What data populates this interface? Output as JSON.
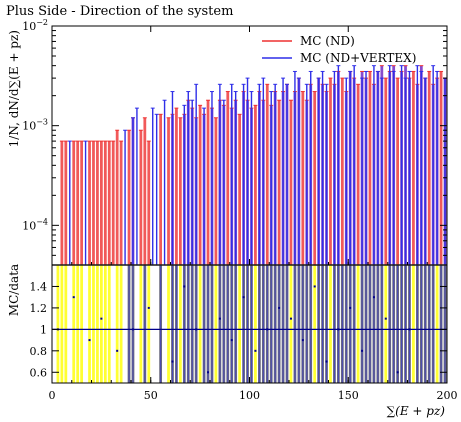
{
  "chart_data": {
    "type": "bar",
    "title": "Plus Side - Direction of the system",
    "xlabel": "∑(E + p_z)",
    "ylabel_main": "1/N, dN/d∑(E + p_z)",
    "ylabel_ratio": "MC/data",
    "xlim": [
      0,
      200
    ],
    "ylim_main": [
      4e-05,
      0.01
    ],
    "ylim_ratio": [
      0.5,
      1.6
    ],
    "yscale_main": "log",
    "x_ticks": [
      "0",
      "50",
      "100",
      "150",
      "200"
    ],
    "y_ticks_main": [
      "10^{-4}",
      "10^{-3}",
      "10^{-2}"
    ],
    "y_ticks_ratio": [
      "0.6",
      "0.8",
      "1",
      "1.2",
      "1.4"
    ],
    "legend_position": "top-right",
    "colors": {
      "nd": "#ee3030",
      "nd_vertex": "#2f2fe8",
      "overlap": "#7a37c8",
      "ratio_nd": "#ffff33",
      "ratio_vertex": "#4848b8",
      "ratio_overlap": "#6b6b7d",
      "reference_line": "#00008b"
    },
    "series": [
      {
        "name": "MC (ND)",
        "x": [
          5,
          7,
          11,
          13,
          15,
          19,
          21,
          23,
          25,
          27,
          29,
          31,
          33,
          35,
          39,
          41,
          45,
          47,
          49,
          55,
          59,
          61,
          63,
          65,
          67,
          69,
          71,
          73,
          75,
          77,
          79,
          81,
          83,
          85,
          87,
          89,
          91,
          93,
          95,
          97,
          99,
          101,
          103,
          105,
          107,
          109,
          111,
          113,
          115,
          117,
          119,
          121,
          123,
          125,
          127,
          129,
          131,
          133,
          135,
          137,
          139,
          141,
          143,
          145,
          147,
          149,
          151,
          153,
          155,
          157,
          159,
          161,
          163,
          165,
          167,
          169,
          171,
          173,
          175,
          177,
          179,
          181,
          183,
          185,
          187,
          189,
          191,
          193,
          195,
          197,
          199
        ],
        "values": [
          0.0007,
          0.0007,
          0.0007,
          0.0007,
          0.0007,
          0.0007,
          0.0007,
          0.0007,
          0.0007,
          0.0007,
          0.0007,
          0.0007,
          0.0009,
          0.0007,
          0.0009,
          0.0012,
          0.0009,
          0.0012,
          0.0007,
          0.0013,
          0.0012,
          0.0013,
          0.0015,
          0.0012,
          0.0013,
          0.0018,
          0.0015,
          0.0012,
          0.0016,
          0.0013,
          0.0018,
          0.0015,
          0.0012,
          0.0018,
          0.0016,
          0.0022,
          0.0015,
          0.0018,
          0.0013,
          0.0022,
          0.0018,
          0.0015,
          0.0016,
          0.0022,
          0.0018,
          0.0026,
          0.0016,
          0.0022,
          0.0018,
          0.0022,
          0.0026,
          0.0018,
          0.0022,
          0.003,
          0.0022,
          0.0018,
          0.0026,
          0.0022,
          0.003,
          0.0026,
          0.0022,
          0.003,
          0.0026,
          0.0035,
          0.003,
          0.0022,
          0.0035,
          0.003,
          0.0026,
          0.0035,
          0.003,
          0.0035,
          0.0026,
          0.0035,
          0.004,
          0.003,
          0.0035,
          0.004,
          0.003,
          0.0035,
          0.004,
          0.003,
          0.0035,
          0.0026,
          0.004,
          0.003,
          0.0035,
          0.0026,
          0.003,
          0.0035,
          0.003
        ]
      },
      {
        "name": "MC (ND+VERTEX)",
        "x": [
          9,
          17,
          37,
          41,
          43,
          51,
          53,
          57,
          61,
          67,
          69,
          71,
          73,
          77,
          81,
          85,
          87,
          91,
          93,
          97,
          99,
          101,
          105,
          107,
          111,
          113,
          117,
          119,
          123,
          125,
          129,
          131,
          135,
          137,
          139,
          143,
          145,
          149,
          151,
          153,
          157,
          159,
          163,
          165,
          167,
          171,
          173,
          177,
          179,
          181,
          185,
          187,
          189,
          193,
          195,
          199
        ],
        "values": [
          0.0007,
          0.0007,
          0.0009,
          0.0012,
          0.0015,
          0.0015,
          0.0013,
          0.0018,
          0.0022,
          0.0016,
          0.0022,
          0.0018,
          0.0026,
          0.0015,
          0.0022,
          0.0026,
          0.0018,
          0.0026,
          0.0022,
          0.0026,
          0.003,
          0.0022,
          0.0026,
          0.003,
          0.0022,
          0.0026,
          0.003,
          0.0026,
          0.0035,
          0.003,
          0.0026,
          0.0035,
          0.003,
          0.0035,
          0.0026,
          0.0035,
          0.004,
          0.003,
          0.0035,
          0.004,
          0.003,
          0.0035,
          0.004,
          0.0035,
          0.003,
          0.004,
          0.0035,
          0.004,
          0.003,
          0.0035,
          0.004,
          0.0035,
          0.003,
          0.004,
          0.0035,
          0.003
        ]
      }
    ],
    "ratio": {
      "x": [
        3,
        5,
        7,
        11,
        13,
        15,
        19,
        21,
        23,
        25,
        27,
        29,
        33,
        35,
        39,
        41,
        45,
        47,
        49,
        55,
        59,
        61,
        63,
        65,
        67,
        69,
        71,
        73,
        75,
        77,
        79,
        81,
        83,
        85,
        87,
        89,
        91,
        93,
        95,
        97,
        99,
        101,
        103,
        105,
        107,
        109,
        111,
        113,
        115,
        117,
        119,
        121,
        123,
        125,
        127,
        129,
        131,
        133,
        135,
        137,
        139,
        141,
        143,
        145,
        147,
        149,
        151,
        153,
        155,
        157,
        159,
        161,
        163,
        165,
        167,
        169,
        171,
        173,
        175,
        177,
        179,
        181,
        183,
        185,
        187,
        189,
        191,
        193,
        195,
        197,
        199
      ],
      "nd": [
        1.6,
        1.6,
        1.6,
        1.6,
        1.6,
        1.6,
        1.6,
        1.6,
        1.6,
        1.6,
        1.6,
        1.6,
        1.6,
        1.6,
        1.6,
        1.6,
        1.6,
        1.6,
        1.6,
        1.6,
        1.6,
        1.6,
        1.6,
        1.6,
        1.6,
        1.6,
        1.6,
        1.6,
        1.6,
        1.6,
        1.6,
        1.6,
        1.6,
        1.6,
        1.6,
        1.6,
        1.6,
        1.6,
        1.6,
        1.6,
        1.6,
        1.6,
        1.6,
        1.6,
        1.6,
        1.6,
        1.6,
        1.6,
        1.6,
        1.6,
        1.6,
        1.6,
        1.6,
        1.6,
        1.6,
        1.6,
        1.6,
        1.6,
        1.6,
        1.6,
        1.6,
        1.6,
        1.6,
        1.6,
        1.6,
        1.6,
        1.6,
        1.6,
        1.6,
        1.6,
        1.6,
        1.6,
        1.6,
        1.6,
        1.6,
        1.6,
        1.6,
        1.6,
        1.6,
        1.6,
        1.6,
        1.6,
        1.6,
        1.6,
        1.6,
        1.6,
        1.6,
        1.6,
        1.6,
        1.6,
        1.6
      ],
      "nd_vertex": [
        0.5,
        0.5,
        0.5,
        0.5,
        0.5,
        0.5,
        0.5,
        0.5,
        0.5,
        0.5,
        0.5,
        0.5,
        0.5,
        0.5,
        1.6,
        1.6,
        0.5,
        1.6,
        0.5,
        1.6,
        0.5,
        1.6,
        1.6,
        0.5,
        1.6,
        1.6,
        1.6,
        1.6,
        0.5,
        1.6,
        1.6,
        1.6,
        0.5,
        1.6,
        1.6,
        1.6,
        1.6,
        1.6,
        0.5,
        1.6,
        1.6,
        1.6,
        0.5,
        1.6,
        1.6,
        1.6,
        1.6,
        1.6,
        1.6,
        1.6,
        1.6,
        0.5,
        1.6,
        1.6,
        1.6,
        1.6,
        1.6,
        0.5,
        1.6,
        1.6,
        1.6,
        0.5,
        1.6,
        1.6,
        1.6,
        1.6,
        1.6,
        1.6,
        0.5,
        1.6,
        1.6,
        1.6,
        1.6,
        1.6,
        1.6,
        0.5,
        1.6,
        1.6,
        1.6,
        1.6,
        1.6,
        1.6,
        0.5,
        1.6,
        1.6,
        1.6,
        1.6,
        1.6,
        0.5,
        1.6,
        1.6
      ],
      "points": [
        1.0,
        1.3,
        0.9,
        1.1,
        0.8,
        1.0,
        1.2,
        0.7,
        1.4,
        1.0,
        0.6,
        1.1,
        0.9,
        1.3,
        0.8,
        1.0,
        1.2,
        1.1,
        0.9,
        1.4,
        0.7,
        1.0,
        1.2,
        0.8,
        1.3,
        1.1,
        0.6,
        1.0
      ]
    },
    "legend": [
      "MC (ND)",
      "MC (ND+VERTEX)"
    ]
  }
}
